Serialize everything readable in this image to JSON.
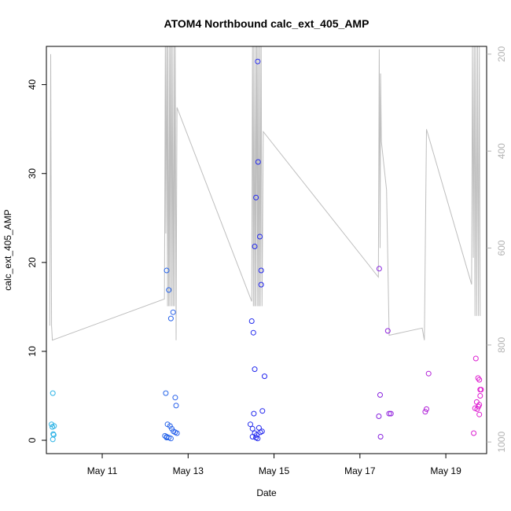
{
  "chart_data": {
    "type": "scatter",
    "title": "ATOM4 Northbound calc_ext_405_AMP",
    "xlabel": "Date",
    "ylabel": "calc_ext_405_AMP",
    "x_unit": "days",
    "xlim": [
      9.7,
      19.95
    ],
    "ylim": [
      -1.5,
      44.3
    ],
    "x_ticks": [
      {
        "value": 11,
        "label": "May 11"
      },
      {
        "value": 13,
        "label": "May 13"
      },
      {
        "value": 15,
        "label": "May 15"
      },
      {
        "value": 17,
        "label": "May 17"
      },
      {
        "value": 19,
        "label": "May 19"
      }
    ],
    "y_ticks": [
      0,
      10,
      20,
      30,
      40
    ],
    "y2lim": [
      1024,
      184
    ],
    "y2_ticks": [
      200,
      400,
      600,
      800,
      1000
    ],
    "grid": false,
    "legend": "none",
    "colors": {
      "depth_line": "#bebebe",
      "right_axis": "#b3b3b3",
      "start": "#2fb8e6",
      "mid": "#2222ee",
      "end": "#e61fcf"
    },
    "series": [
      {
        "name": "",
        "values": [
          [
            9.85,
            5.3
          ],
          [
            9.82,
            1.8
          ],
          [
            9.84,
            1.5
          ],
          [
            9.88,
            1.6
          ],
          [
            9.86,
            0.7
          ],
          [
            9.87,
            0.6
          ],
          [
            9.85,
            0.1
          ],
          [
            12.5,
            19.1
          ],
          [
            12.55,
            16.9
          ],
          [
            12.65,
            14.4
          ],
          [
            12.6,
            13.7
          ],
          [
            12.48,
            5.3
          ],
          [
            12.7,
            4.8
          ],
          [
            12.72,
            3.9
          ],
          [
            12.52,
            1.8
          ],
          [
            12.58,
            1.6
          ],
          [
            12.62,
            1.3
          ],
          [
            12.66,
            1.0
          ],
          [
            12.7,
            0.9
          ],
          [
            12.74,
            0.8
          ],
          [
            12.46,
            0.5
          ],
          [
            12.5,
            0.4
          ],
          [
            12.55,
            0.3
          ],
          [
            12.6,
            0.2
          ],
          [
            12.5,
            0.3
          ],
          [
            14.62,
            42.6
          ],
          [
            14.63,
            31.3
          ],
          [
            14.58,
            27.3
          ],
          [
            14.67,
            22.9
          ],
          [
            14.55,
            21.8
          ],
          [
            14.7,
            19.1
          ],
          [
            14.7,
            17.5
          ],
          [
            14.48,
            13.4
          ],
          [
            14.52,
            12.1
          ],
          [
            14.55,
            8.0
          ],
          [
            14.78,
            7.2
          ],
          [
            14.73,
            3.3
          ],
          [
            14.53,
            3.0
          ],
          [
            14.45,
            1.8
          ],
          [
            14.5,
            1.3
          ],
          [
            14.65,
            1.4
          ],
          [
            14.72,
            1.0
          ],
          [
            14.68,
            0.9
          ],
          [
            14.55,
            0.8
          ],
          [
            14.6,
            0.6
          ],
          [
            14.5,
            0.4
          ],
          [
            14.58,
            0.3
          ],
          [
            14.62,
            0.2
          ],
          [
            17.45,
            19.3
          ],
          [
            17.65,
            12.3
          ],
          [
            17.47,
            5.1
          ],
          [
            17.68,
            3.0
          ],
          [
            17.72,
            3.0
          ],
          [
            17.44,
            2.7
          ],
          [
            17.48,
            0.4
          ],
          [
            18.6,
            7.5
          ],
          [
            18.55,
            3.5
          ],
          [
            18.52,
            3.2
          ],
          [
            19.7,
            9.2
          ],
          [
            19.75,
            7.0
          ],
          [
            19.78,
            6.8
          ],
          [
            19.8,
            5.7
          ],
          [
            19.82,
            5.7
          ],
          [
            19.8,
            5.0
          ],
          [
            19.72,
            4.3
          ],
          [
            19.78,
            4.0
          ],
          [
            19.76,
            3.8
          ],
          [
            19.68,
            3.6
          ],
          [
            19.73,
            3.5
          ],
          [
            19.78,
            2.9
          ],
          [
            19.65,
            0.8
          ]
        ]
      }
    ],
    "depth_line": [
      [
        9.78,
        760
      ],
      [
        9.8,
        200
      ],
      [
        9.82,
        760
      ],
      [
        9.84,
        790
      ],
      [
        12.45,
        705
      ],
      [
        12.47,
        180
      ],
      [
        12.48,
        570
      ],
      [
        12.5,
        180
      ],
      [
        12.52,
        720
      ],
      [
        12.53,
        180
      ],
      [
        12.55,
        720
      ],
      [
        12.57,
        180
      ],
      [
        12.58,
        720
      ],
      [
        12.6,
        180
      ],
      [
        12.62,
        720
      ],
      [
        12.63,
        180
      ],
      [
        12.65,
        720
      ],
      [
        12.67,
        180
      ],
      [
        12.68,
        720
      ],
      [
        12.7,
        180
      ],
      [
        12.72,
        790
      ],
      [
        12.74,
        310
      ],
      [
        14.48,
        710
      ],
      [
        14.5,
        180
      ],
      [
        14.52,
        720
      ],
      [
        14.53,
        180
      ],
      [
        14.55,
        720
      ],
      [
        14.57,
        180
      ],
      [
        14.58,
        720
      ],
      [
        14.6,
        180
      ],
      [
        14.62,
        720
      ],
      [
        14.63,
        180
      ],
      [
        14.65,
        720
      ],
      [
        14.67,
        180
      ],
      [
        14.68,
        720
      ],
      [
        14.7,
        180
      ],
      [
        14.72,
        720
      ],
      [
        14.75,
        360
      ],
      [
        17.43,
        660
      ],
      [
        17.45,
        190
      ],
      [
        17.47,
        600
      ],
      [
        17.48,
        240
      ],
      [
        17.5,
        380
      ],
      [
        17.62,
        480
      ],
      [
        17.68,
        780
      ],
      [
        18.45,
        765
      ],
      [
        18.5,
        790
      ],
      [
        18.55,
        355
      ],
      [
        19.6,
        675
      ],
      [
        19.62,
        180
      ],
      [
        19.64,
        620
      ],
      [
        19.66,
        180
      ],
      [
        19.68,
        740
      ],
      [
        19.7,
        180
      ],
      [
        19.72,
        740
      ],
      [
        19.74,
        180
      ],
      [
        19.76,
        740
      ],
      [
        19.78,
        180
      ],
      [
        19.8,
        740
      ]
    ]
  }
}
